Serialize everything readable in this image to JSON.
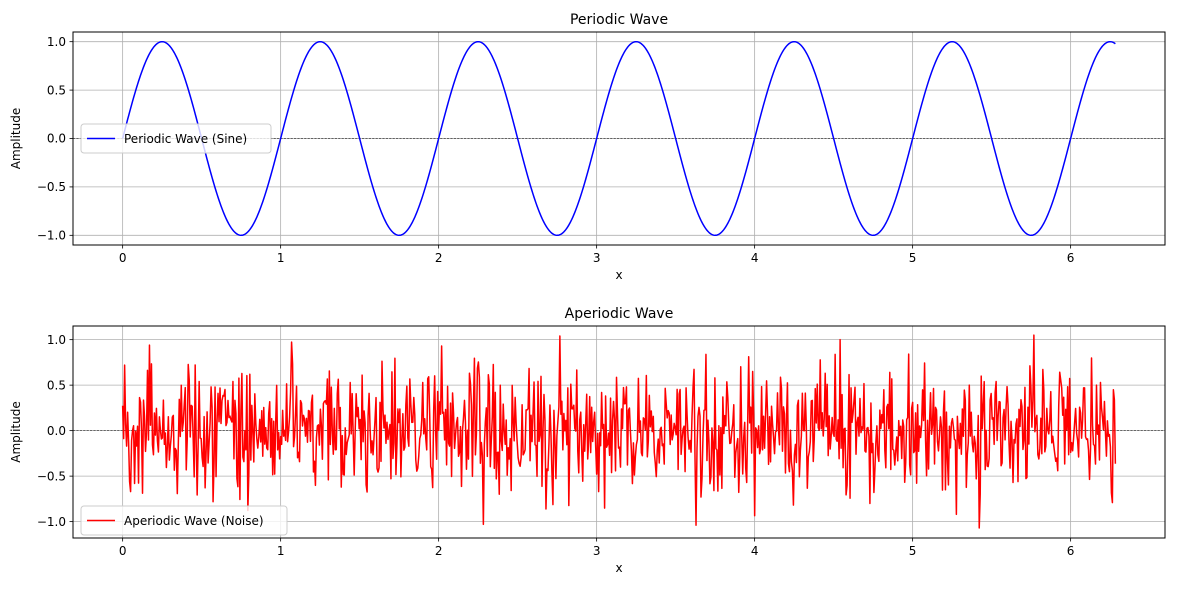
{
  "chart_data": [
    {
      "type": "line",
      "title": "Periodic Wave",
      "xlabel": "x",
      "ylabel": "Amplitude",
      "xlim": [
        -0.3142,
        6.5973
      ],
      "ylim": [
        -1.1,
        1.1
      ],
      "xticks": [
        0,
        1,
        2,
        3,
        4,
        5,
        6
      ],
      "xtick_labels": [
        "0",
        "1",
        "2",
        "3",
        "4",
        "5",
        "6"
      ],
      "yticks": [
        -1.0,
        -0.5,
        0.0,
        0.5,
        1.0
      ],
      "ytick_labels": [
        "−1.0",
        "−0.5",
        "0.0",
        "0.5",
        "1.0"
      ],
      "grid": true,
      "zero_reference_line": true,
      "legend_position": "center-left",
      "series": [
        {
          "name": "Periodic Wave (Sine)",
          "color": "#0000ff",
          "function": "sin(2*pi*x)",
          "x_range": [
            0,
            6.2832
          ],
          "samples": 1000
        }
      ]
    },
    {
      "type": "line",
      "title": "Aperiodic Wave",
      "xlabel": "x",
      "ylabel": "Amplitude",
      "xlim": [
        -0.3142,
        6.5973
      ],
      "ylim": [
        -1.18,
        1.15
      ],
      "xticks": [
        0,
        1,
        2,
        3,
        4,
        5,
        6
      ],
      "xtick_labels": [
        "0",
        "1",
        "2",
        "3",
        "4",
        "5",
        "6"
      ],
      "yticks": [
        -1.0,
        -0.5,
        0.0,
        0.5,
        1.0
      ],
      "ytick_labels": [
        "−1.0",
        "−0.5",
        "0.0",
        "0.5",
        "1.0"
      ],
      "grid": true,
      "zero_reference_line": true,
      "legend_position": "lower-left",
      "series": [
        {
          "name": "Aperiodic Wave (Noise)",
          "color": "#ff0000",
          "distribution": "random noise, mean 0, range approx -1.07 to 1.05",
          "x_range": [
            0,
            6.2832
          ],
          "samples": 1000,
          "peaks": [
            {
              "x": 0.01,
              "y": 0.72
            },
            {
              "x": 0.17,
              "y": 0.94
            },
            {
              "x": 2.02,
              "y": 0.93
            },
            {
              "x": 2.28,
              "y": -1.03
            },
            {
              "x": 2.77,
              "y": 1.04
            },
            {
              "x": 3.63,
              "y": -1.04
            },
            {
              "x": 4.54,
              "y": 1.0
            },
            {
              "x": 5.28,
              "y": -0.92
            },
            {
              "x": 5.42,
              "y": -1.07
            },
            {
              "x": 5.77,
              "y": 1.05
            }
          ]
        }
      ]
    }
  ]
}
